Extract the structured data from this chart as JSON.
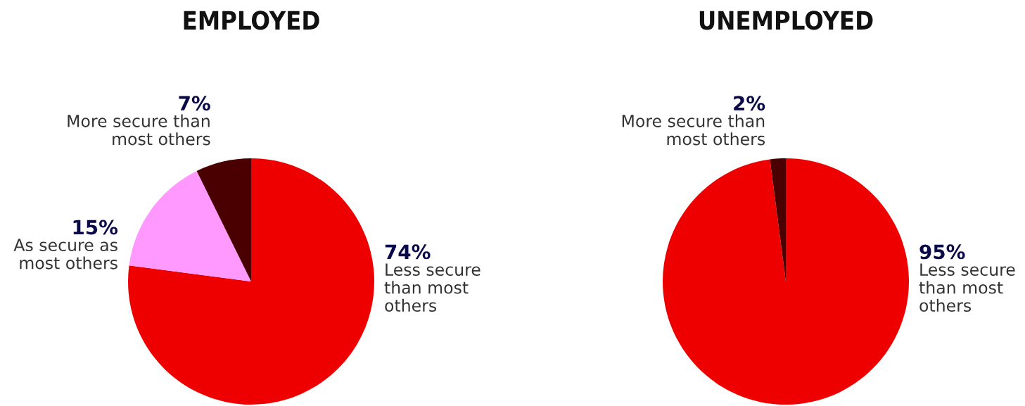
{
  "chart_data": [
    {
      "type": "pie",
      "title": "EMPLOYED",
      "categories": [
        "Less secure\nthan most\nothers",
        "As secure as\nmost others",
        "More secure than\nmost others"
      ],
      "values": [
        74,
        15,
        7
      ],
      "value_labels": [
        "74%",
        "15%",
        "7%"
      ],
      "colors": [
        "#ee0000",
        "#ff99ff",
        "#4a0000"
      ]
    },
    {
      "type": "pie",
      "title": "UNEMPLOYED",
      "categories": [
        "Less secure\nthan most\nothers",
        "More secure than\nmost others"
      ],
      "values": [
        95,
        2
      ],
      "value_labels": [
        "95%",
        "2%"
      ],
      "colors": [
        "#ee0000",
        "#4a0000"
      ]
    }
  ]
}
